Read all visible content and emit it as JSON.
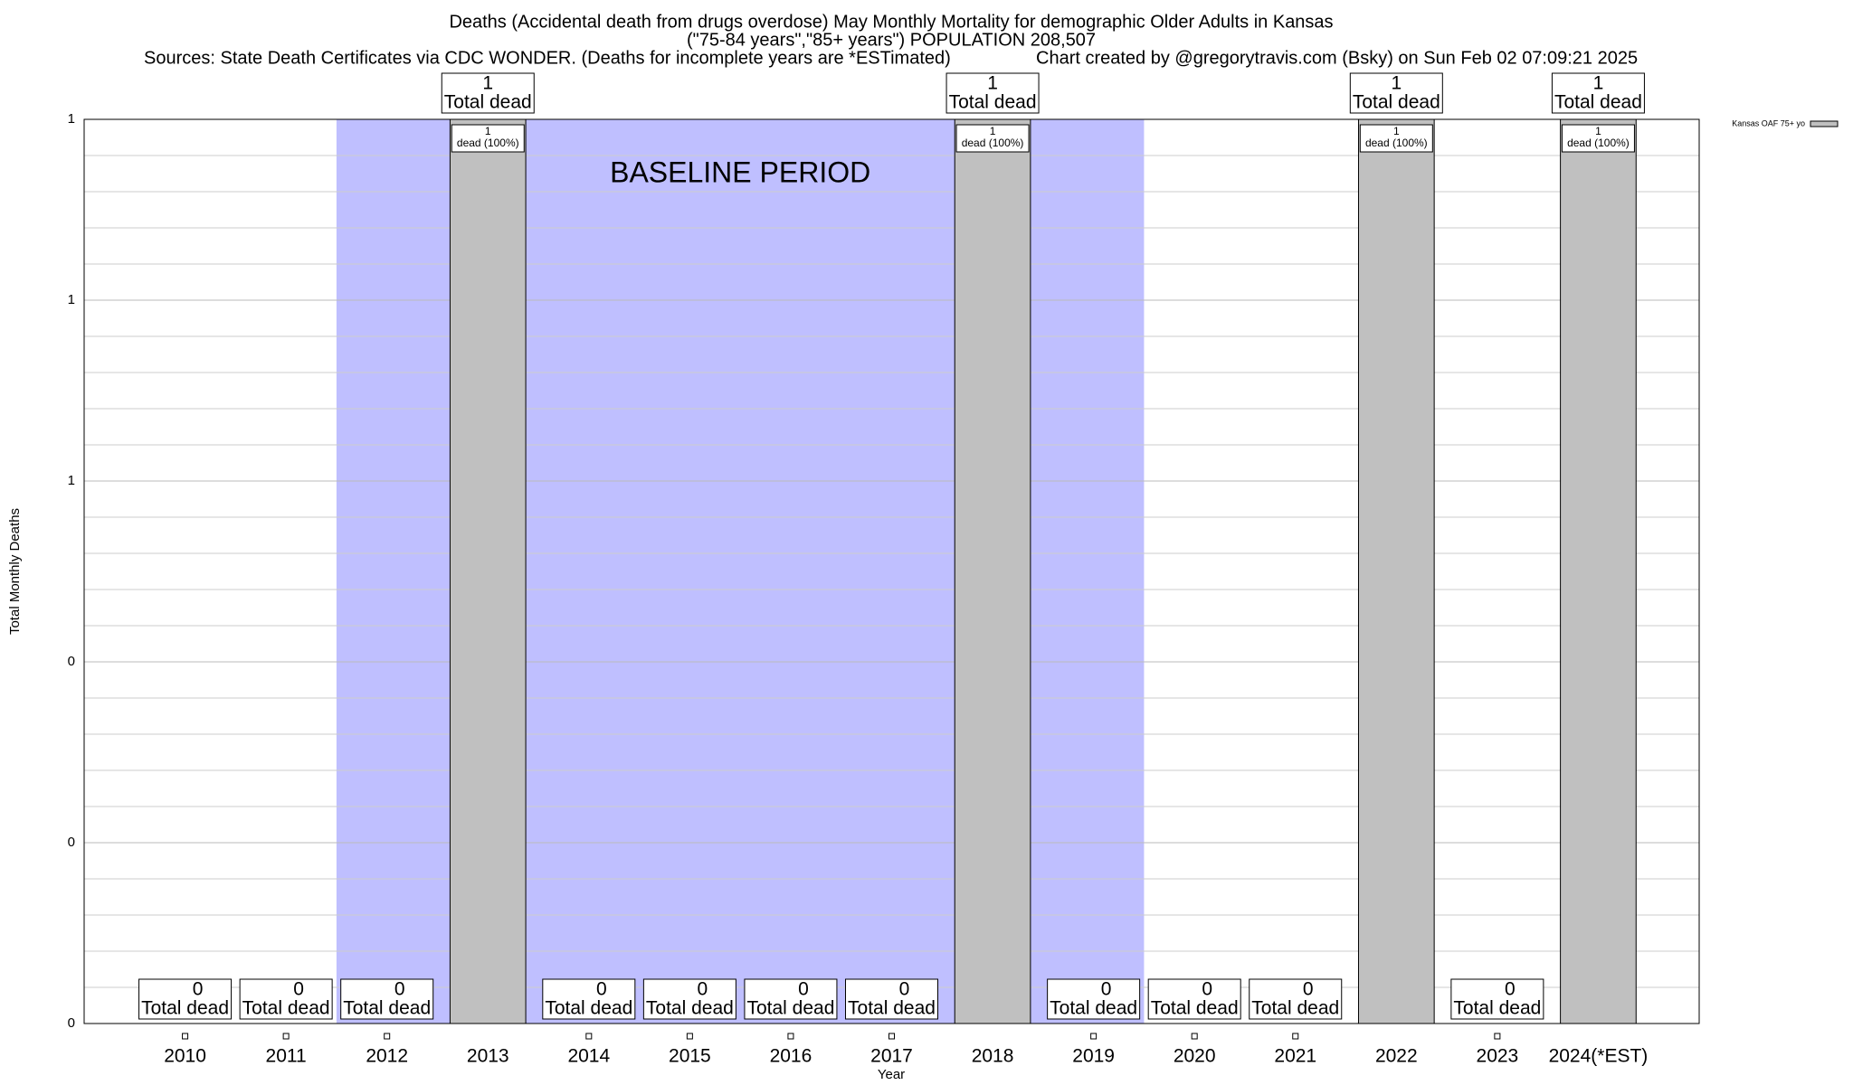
{
  "chart_data": {
    "type": "bar",
    "title": "Deaths (Accidental death from drugs overdose) May Monthly Mortality for demographic Older Adults in Kansas",
    "subtitle": "(\"75-84 years\",\"85+ years\") POPULATION 208,507",
    "source": "Sources: State Death Certificates via CDC WONDER. (Deaths for incomplete years are *ESTimated)",
    "credit": "Chart created by @gregorytravis.com (Bsky) on Sun Feb 02 07:09:21 2025",
    "x_label": "Year",
    "y_label": "Total Monthly Deaths",
    "categories": [
      "2010",
      "2011",
      "2012",
      "2013",
      "2014",
      "2015",
      "2016",
      "2017",
      "2018",
      "2019",
      "2020",
      "2021",
      "2022",
      "2023",
      "2024(*EST)"
    ],
    "series": [
      {
        "name": "Kansas OAF 75+ yo",
        "color": "#c0c0c0",
        "values": [
          0,
          0,
          0,
          1,
          0,
          0,
          0,
          0,
          1,
          0,
          0,
          0,
          1,
          0,
          1
        ]
      }
    ],
    "total_label": "Total dead",
    "bar_label": "dead (100%)",
    "baseline": {
      "label": "BASELINE PERIOD",
      "start": "2012",
      "end": "2019",
      "color": "#bfbfff"
    },
    "ylim": [
      0,
      1
    ],
    "yticks": [
      0,
      {
        "value": 0.2,
        "label": "0"
      },
      {
        "value": 0.4,
        "label": "0"
      },
      {
        "value": 0.6,
        "label": "1"
      },
      {
        "value": 0.8,
        "label": "1"
      },
      1
    ],
    "grid": true,
    "legend": "top-right"
  }
}
